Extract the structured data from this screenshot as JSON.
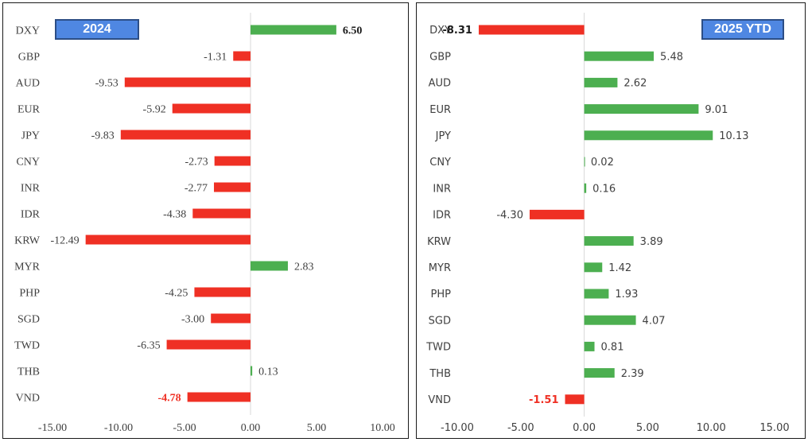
{
  "colors": {
    "positive": "#4caf50",
    "negative": "#ef3024",
    "highlight": "#ef3024",
    "axis": "#d9d9d9",
    "label": "#404040"
  },
  "chart_data": [
    {
      "type": "bar",
      "orientation": "horizontal",
      "title": "2024",
      "categories": [
        "DXY",
        "GBP",
        "AUD",
        "EUR",
        "JPY",
        "CNY",
        "INR",
        "IDR",
        "KRW",
        "MYR",
        "PHP",
        "SGD",
        "TWD",
        "THB",
        "VND"
      ],
      "values": [
        6.5,
        -1.31,
        -9.53,
        -5.92,
        -9.83,
        -2.73,
        -2.77,
        -4.38,
        -12.49,
        2.83,
        -4.25,
        -3.0,
        -6.35,
        0.13,
        -4.78
      ],
      "value_labels": [
        "6.50",
        "-1.31",
        "-9.53",
        "-5.92",
        "-9.83",
        "-2.73",
        "-2.77",
        "-4.38",
        "-12.49",
        "2.83",
        "-4.25",
        "-3.00",
        "-6.35",
        "0.13",
        "-4.78"
      ],
      "bold_labels": [
        "DXY",
        "VND"
      ],
      "highlight_labels": [
        "VND"
      ],
      "xlim": [
        -15,
        10
      ],
      "xticks": [
        -15,
        -10,
        -5,
        0,
        5,
        10
      ],
      "xtick_labels": [
        "-15.00",
        "-10.00",
        "-5.00",
        "0.00",
        "5.00",
        "10.00"
      ],
      "font": "serif"
    },
    {
      "type": "bar",
      "orientation": "horizontal",
      "title": "2025 YTD",
      "categories": [
        "DXY",
        "GBP",
        "AUD",
        "EUR",
        "JPY",
        "CNY",
        "INR",
        "IDR",
        "KRW",
        "MYR",
        "PHP",
        "SGD",
        "TWD",
        "THB",
        "VND"
      ],
      "values": [
        -8.31,
        5.48,
        2.62,
        9.01,
        10.13,
        0.02,
        0.16,
        -4.3,
        3.89,
        1.42,
        1.93,
        4.07,
        0.81,
        2.39,
        -1.51
      ],
      "value_labels": [
        "-8.31",
        "5.48",
        "2.62",
        "9.01",
        "10.13",
        "0.02",
        "0.16",
        "-4.30",
        "3.89",
        "1.42",
        "1.93",
        "4.07",
        "0.81",
        "2.39",
        "-1.51"
      ],
      "bold_labels": [
        "DXY",
        "VND"
      ],
      "highlight_labels": [
        "VND"
      ],
      "xlim": [
        -10,
        15
      ],
      "xticks": [
        -10,
        -5,
        0,
        5,
        10,
        15
      ],
      "xtick_labels": [
        "-10.00",
        "-5.00",
        "0.00",
        "5.00",
        "10.00",
        "15.00"
      ],
      "font": "sans"
    }
  ]
}
